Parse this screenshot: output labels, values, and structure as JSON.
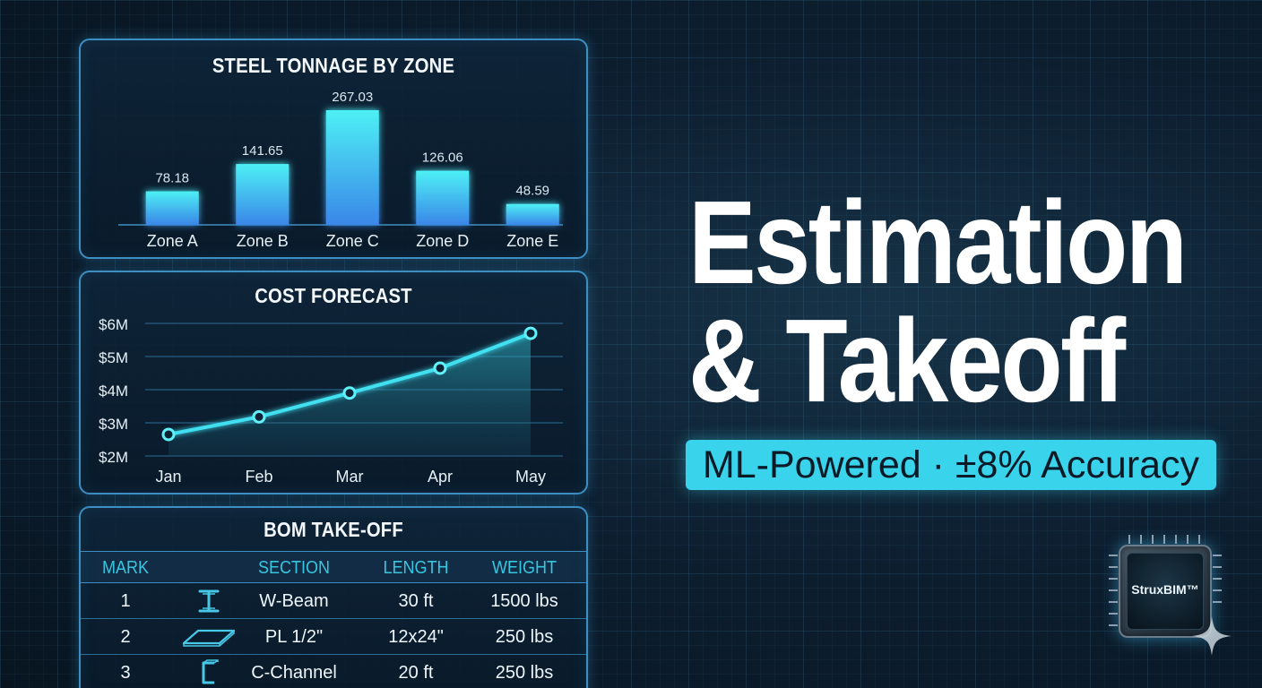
{
  "bar_panel": {
    "title": "STEEL TONNAGE BY ZONE"
  },
  "line_panel": {
    "title": "COST FORECAST"
  },
  "chart_data": [
    {
      "type": "bar",
      "title": "STEEL TONNAGE BY ZONE",
      "categories": [
        "Zone A",
        "Zone B",
        "Zone C",
        "Zone D",
        "Zone E"
      ],
      "values": [
        78.18,
        141.65,
        267.03,
        126.06,
        48.59
      ],
      "value_labels": [
        "78.18",
        "141.65",
        "267.03",
        "126.06",
        "48.59"
      ],
      "ylim": [
        0,
        300
      ],
      "grid": false,
      "color": "#3fd8ee"
    },
    {
      "type": "line",
      "title": "COST FORECAST",
      "x": [
        "Jan",
        "Feb",
        "Mar",
        "Apr",
        "May"
      ],
      "values": [
        2.65,
        3.18,
        3.9,
        4.65,
        5.7
      ],
      "yticks": [
        "$2M",
        "$3M",
        "$4M",
        "$5M",
        "$6M"
      ],
      "ylim": [
        2,
        6
      ],
      "grid": true,
      "fill": "area",
      "color": "#3fe0f0"
    }
  ],
  "bom": {
    "title": "BOM TAKE-OFF",
    "columns": [
      "MARK",
      "SECTION",
      "LENGTH",
      "WEIGHT"
    ],
    "rows": [
      {
        "mark": "1",
        "icon": "i-beam-icon",
        "section": "W-Beam",
        "length": "30 ft",
        "weight": "1500 lbs"
      },
      {
        "mark": "2",
        "icon": "plate-icon",
        "section": "PL 1/2\"",
        "length": "12x24\"",
        "weight": "250 lbs"
      },
      {
        "mark": "3",
        "icon": "c-channel-icon",
        "section": "C-Channel",
        "length": "20 ft",
        "weight": "250 lbs"
      }
    ]
  },
  "hero": {
    "line1": "Estimation",
    "line2": "& Takeoff"
  },
  "tagline": "ML-Powered · ±8% Accuracy",
  "logo": {
    "text": "StruxBIM™",
    "icon": "chip-icon"
  },
  "colors": {
    "accent": "#3ad3ec",
    "border": "#3d8fc2",
    "background": "#0d1f30"
  }
}
